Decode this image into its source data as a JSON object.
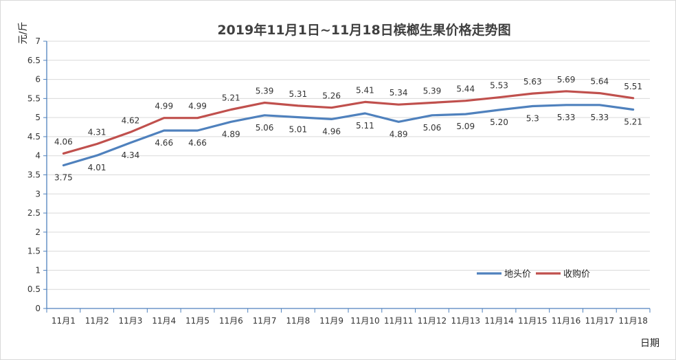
{
  "chart_data": {
    "type": "line",
    "title": "2019年11月1日~11月18日槟榔生果价格走势图",
    "ylabel": "元/斤",
    "xlabel": "日期",
    "ylim": [
      0,
      7
    ],
    "y_ticks": [
      "0",
      "0.5",
      "1",
      "1.5",
      "2",
      "2.5",
      "3",
      "3.5",
      "4",
      "4.5",
      "5",
      "5.5",
      "6",
      "6.5",
      "7"
    ],
    "categories": [
      "11月1",
      "11月2",
      "11月3",
      "11月4",
      "11月5",
      "11月6",
      "11月7",
      "11月8",
      "11月9",
      "11月10",
      "11月11",
      "11月12",
      "11月13",
      "11月14",
      "11月15",
      "11月16",
      "11月17",
      "11月18"
    ],
    "series": [
      {
        "name": "地头价",
        "color": "#4f81bd",
        "values": [
          3.75,
          4.01,
          4.34,
          4.66,
          4.66,
          4.89,
          5.06,
          5.01,
          4.96,
          5.11,
          4.89,
          5.06,
          5.09,
          5.2,
          5.3,
          5.33,
          5.33,
          5.21
        ],
        "labels": [
          "3.75",
          "4.01",
          "4.34",
          "4.66",
          "4.66",
          "4.89",
          "5.06",
          "5.01",
          "4.96",
          "5.11",
          "4.89",
          "5.06",
          "5.09",
          "5.20",
          "5.3",
          "5.33",
          "5.33",
          "5.21"
        ]
      },
      {
        "name": "收购价",
        "color": "#c0504d",
        "values": [
          4.06,
          4.31,
          4.62,
          4.99,
          4.99,
          5.21,
          5.39,
          5.31,
          5.26,
          5.41,
          5.34,
          5.39,
          5.44,
          5.53,
          5.63,
          5.69,
          5.64,
          5.51
        ],
        "labels": [
          "4.06",
          "4.31",
          "4.62",
          "4.99",
          "4.99",
          "5.21",
          "5.39",
          "5.31",
          "5.26",
          "5.41",
          "5.34",
          "5.39",
          "5.44",
          "5.53",
          "5.63",
          "5.69",
          "5.64",
          "5.51"
        ]
      }
    ],
    "grid": true,
    "legend_position": "bottom-right"
  }
}
